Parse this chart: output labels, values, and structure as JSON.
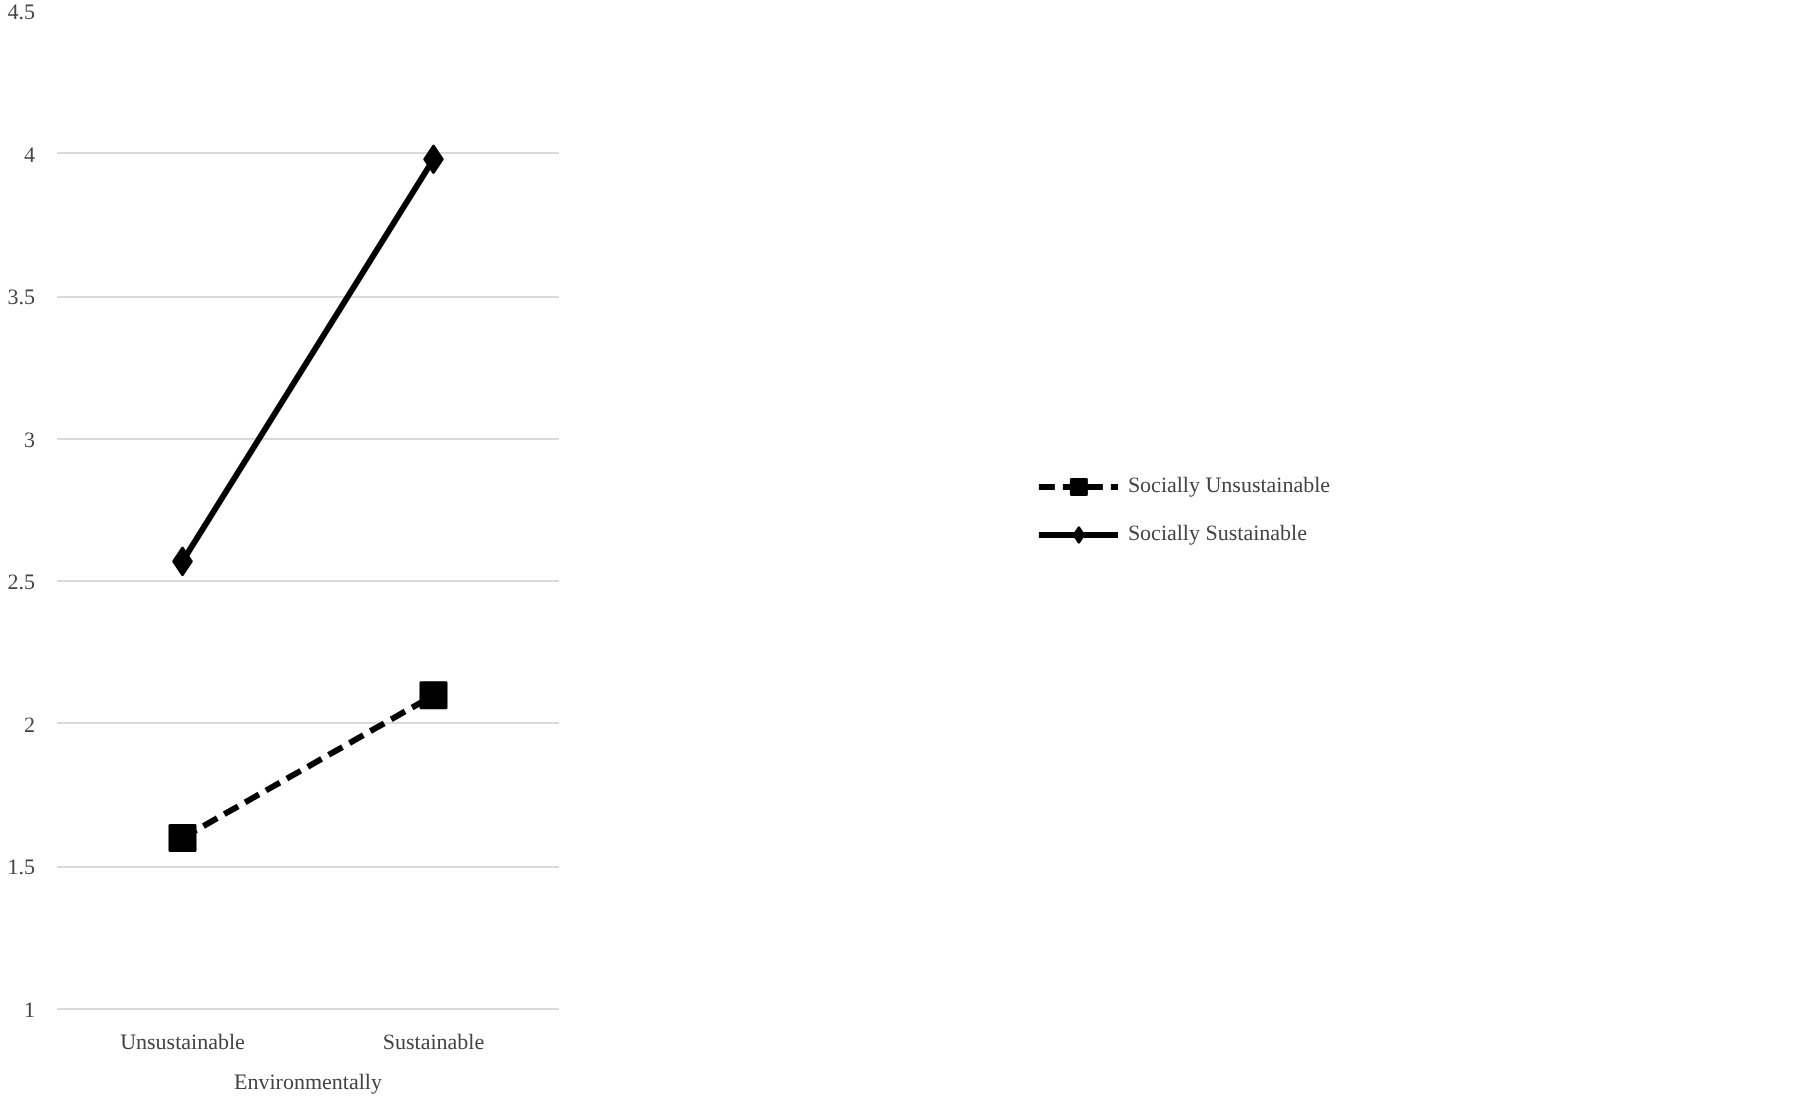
{
  "chart_data": {
    "type": "line",
    "xlabel": "Environmentally",
    "categories": [
      "Unsustainable",
      "Sustainable"
    ],
    "series": [
      {
        "name": "Socially Unsustainable",
        "color": "#000000",
        "values": [
          1.6,
          2.1
        ],
        "marker": "square",
        "line_style": "dashed"
      },
      {
        "name": "Socially Sustainable",
        "color": "#000000",
        "values": [
          2.57,
          3.98
        ],
        "marker": "diamond",
        "line_style": "solid"
      }
    ],
    "ylim": [
      1,
      4.5
    ],
    "yticks": [
      1,
      1.5,
      2,
      2.5,
      3,
      3.5,
      4,
      4.5
    ],
    "grid": "y",
    "legend": "right"
  }
}
